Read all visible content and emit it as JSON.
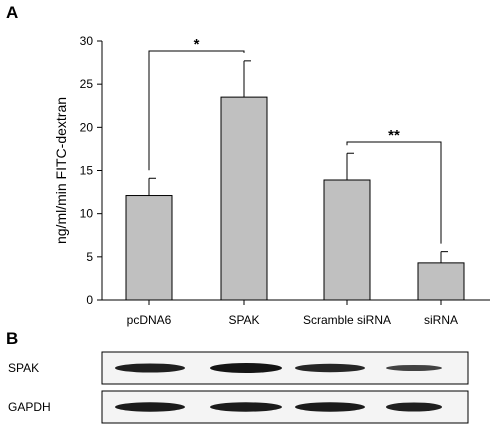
{
  "panels": {
    "a": "A",
    "b": "B"
  },
  "chart_data": {
    "type": "bar",
    "title": "",
    "xlabel": "",
    "ylabel": "ng/ml/min FITC-dextran",
    "ylim": [
      0,
      30
    ],
    "yticks": [
      "0",
      "5",
      "10",
      "15",
      "20",
      "25",
      "30"
    ],
    "categories": [
      "pcDNA6",
      "SPAK",
      "Scramble siRNA",
      "siRNA"
    ],
    "values": [
      12.1,
      23.5,
      13.9,
      4.3
    ],
    "errors": [
      2.0,
      4.2,
      3.1,
      1.3
    ],
    "bar_color": "#c0c0c0",
    "grid": false,
    "legend": "none",
    "significance": [
      {
        "pair": [
          0,
          1
        ],
        "label": "*"
      },
      {
        "pair": [
          2,
          3
        ],
        "label": "**"
      }
    ]
  },
  "blot": {
    "rows": [
      {
        "label": "SPAK",
        "intensities": [
          0.85,
          1.0,
          0.75,
          0.35
        ]
      },
      {
        "label": "GAPDH",
        "intensities": [
          0.9,
          0.9,
          0.9,
          0.85
        ]
      }
    ]
  }
}
